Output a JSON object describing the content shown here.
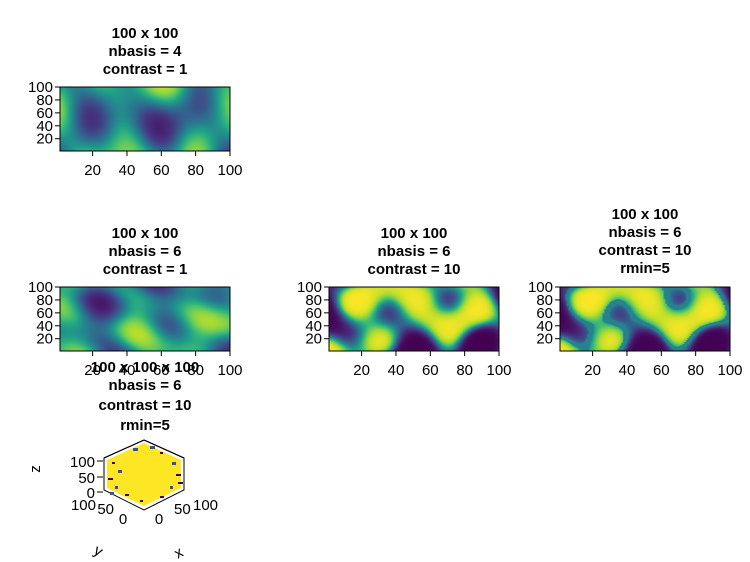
{
  "chart_data": [
    {
      "type": "heatmap",
      "title_lines": [
        "100 x 100",
        "nbasis = 4",
        "contrast = 1"
      ],
      "grid_size": [
        100,
        100
      ],
      "nbasis": 4,
      "contrast": 1,
      "colormap": "viridis",
      "xlim": [
        1,
        100
      ],
      "ylim": [
        1,
        100
      ],
      "xticks": [
        20,
        40,
        60,
        80,
        100
      ],
      "yticks": [
        20,
        40,
        60,
        80,
        100
      ]
    },
    {
      "type": "heatmap",
      "title_lines": [
        "100 x 100",
        "nbasis = 6",
        "contrast = 1"
      ],
      "grid_size": [
        100,
        100
      ],
      "nbasis": 6,
      "contrast": 1,
      "colormap": "viridis",
      "xlim": [
        1,
        100
      ],
      "ylim": [
        1,
        100
      ],
      "xticks": [
        20,
        40,
        60,
        80,
        100
      ],
      "yticks": [
        20,
        40,
        60,
        80,
        100
      ]
    },
    {
      "type": "heatmap",
      "title_lines": [
        "100 x 100",
        "nbasis = 6",
        "contrast = 10"
      ],
      "grid_size": [
        100,
        100
      ],
      "nbasis": 6,
      "contrast": 10,
      "colormap": "viridis",
      "xlim": [
        1,
        100
      ],
      "ylim": [
        1,
        100
      ],
      "xticks": [
        20,
        40,
        60,
        80,
        100
      ],
      "yticks": [
        20,
        40,
        60,
        80,
        100
      ]
    },
    {
      "type": "heatmap",
      "title_lines": [
        "100 x 100",
        "nbasis = 6",
        "contrast = 10",
        "rmin=5"
      ],
      "grid_size": [
        100,
        100
      ],
      "nbasis": 6,
      "contrast": 10,
      "rmin": 5,
      "colormap": "viridis",
      "xlim": [
        1,
        100
      ],
      "ylim": [
        1,
        100
      ],
      "xticks": [
        20,
        40,
        60,
        80,
        100
      ],
      "yticks": [
        20,
        40,
        60,
        80,
        100
      ]
    },
    {
      "type": "volume",
      "title_lines": [
        "100 x 100 x 100",
        "nbasis = 6",
        "contrast = 10",
        "rmin=5"
      ],
      "grid_size": [
        100,
        100,
        100
      ],
      "nbasis": 6,
      "contrast": 10,
      "rmin": 5,
      "colormap": "viridis",
      "xlabel": "x",
      "ylabel": "y",
      "zlabel": "z",
      "xticks": [
        0,
        50,
        100
      ],
      "yticks": [
        0,
        50,
        100
      ],
      "zticks": [
        0,
        50,
        100
      ]
    }
  ]
}
